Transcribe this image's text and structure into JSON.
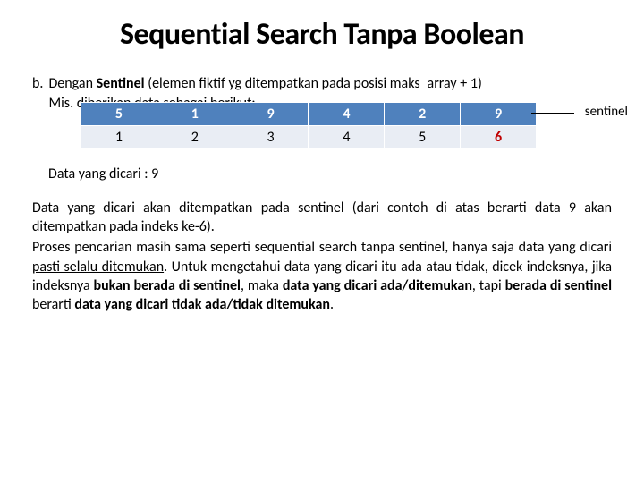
{
  "title": "Sequential Search Tanpa Boolean",
  "list_marker": "b.",
  "intro_line1_prefix": "Dengan ",
  "intro_line1_bold": "Sentinel",
  "intro_line1_suffix": " (elemen fiktif yg ditempatkan pada posisi maks_array + 1)",
  "intro_line2": "Mis. diberikan data sebagai berikut:",
  "table": {
    "values": [
      "5",
      "1",
      "9",
      "4",
      "2",
      "9"
    ],
    "indices": [
      "1",
      "2",
      "3",
      "4",
      "5",
      "6"
    ],
    "sentinel_index_pos": 5,
    "row_blue_bg": "#4f81bd",
    "row_index_bg": "#e9edf4",
    "sentinel_color": "#c00000"
  },
  "sentinel_label": "sentinel",
  "search_target": "Data yang dicari : 9",
  "para1_a": "Data yang dicari akan ditempatkan pada sentinel (dari contoh di atas berarti data 9 akan ditempatkan pada indeks ke-6).",
  "para2_a": "Proses pencarian masih sama seperti sequential search tanpa sentinel, hanya saja data yang dicari ",
  "para2_b": "pasti selalu ditemukan",
  "para2_c": ". Untuk mengetahui data yang dicari itu ada atau tidak, dicek indeksnya, jika indeksnya ",
  "para2_d": "bukan berada di sentinel",
  "para2_e": ", maka ",
  "para2_f": "data yang dicari ada/ditemukan",
  "para2_g": ", tapi ",
  "para2_h": "berada di sentinel",
  "para2_i": " berarti ",
  "para2_j": "data yang dicari tidak ada/tidak ditemukan",
  "para2_k": "."
}
